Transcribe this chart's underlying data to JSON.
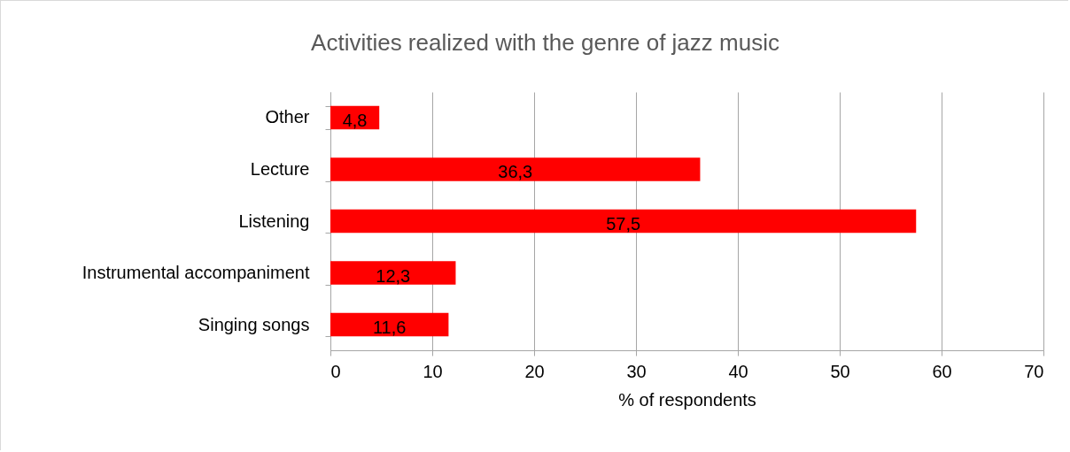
{
  "chart_data": {
    "type": "bar",
    "orientation": "horizontal",
    "title": "Activities realized with the genre of jazz music",
    "xlabel": "% of respondents",
    "categories": [
      "Other",
      "Lecture",
      "Listening",
      "Instrumental accompaniment",
      "Singing songs"
    ],
    "values": [
      4.8,
      36.3,
      57.5,
      12.3,
      11.6
    ],
    "value_labels": [
      "4,8",
      "36,3",
      "57,5",
      "12,3",
      "11,6"
    ],
    "color": "#ff0000",
    "xlim": [
      0,
      70
    ],
    "xticks": [
      0,
      10,
      20,
      30,
      40,
      50,
      60,
      70
    ],
    "grid": "x"
  }
}
